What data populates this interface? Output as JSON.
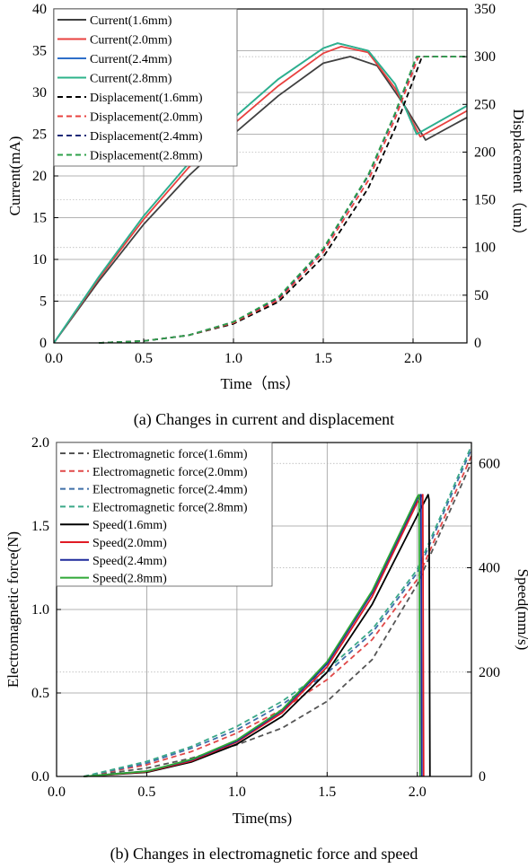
{
  "chart_data": [
    {
      "type": "line",
      "caption": "(a) Changes in current and displacement",
      "xlabel": "Time（ms）",
      "ylabel": "Current(mA)",
      "y2label": "Displacement（um）",
      "xlim": [
        0,
        2.3
      ],
      "ylim": [
        0,
        40
      ],
      "y2lim": [
        0,
        350
      ],
      "xticks": [
        "0.0",
        "0.5",
        "1.0",
        "1.5",
        "2.0"
      ],
      "yticks": [
        "0",
        "5",
        "10",
        "15",
        "20",
        "25",
        "30",
        "35",
        "40"
      ],
      "y2ticks": [
        "0",
        "50",
        "100",
        "150",
        "200",
        "250",
        "300",
        "350"
      ],
      "grid": true,
      "legend_position": "top-left",
      "colors": {
        "1.6mm": "#404040",
        "2.0mm": "#e8413f",
        "2.4mm": "#2e6fc9",
        "2.8mm": "#2db38a"
      },
      "dashed_colors": {
        "1.6mm": "#000000",
        "2.0mm": "#e8413f",
        "2.4mm": "#1e2a78",
        "2.8mm": "#2ea04a"
      },
      "series": [
        {
          "name": "Current(1.6mm)",
          "axis": "left",
          "style": "solid",
          "key": "1.6mm",
          "x": [
            0,
            0.25,
            0.5,
            0.75,
            1.0,
            1.25,
            1.5,
            1.65,
            1.8,
            1.95,
            2.07,
            2.3
          ],
          "y": [
            0,
            7.4,
            14.2,
            20.0,
            25.0,
            29.6,
            33.5,
            34.3,
            33.2,
            28.5,
            24.3,
            27.0
          ]
        },
        {
          "name": "Current(2.0mm)",
          "axis": "left",
          "style": "solid",
          "key": "2.0mm",
          "x": [
            0,
            0.25,
            0.5,
            0.75,
            1.0,
            1.25,
            1.5,
            1.6,
            1.75,
            1.9,
            2.04,
            2.3
          ],
          "y": [
            0,
            7.7,
            14.8,
            21.0,
            26.2,
            30.8,
            34.7,
            35.5,
            34.8,
            30.5,
            24.7,
            27.8
          ]
        },
        {
          "name": "Current(2.4mm)",
          "axis": "left",
          "style": "solid",
          "key": "2.4mm",
          "x": [
            0,
            0.25,
            0.5,
            0.75,
            1.0,
            1.25,
            1.5,
            1.58,
            1.75,
            1.9,
            2.02,
            2.3
          ],
          "y": [
            0,
            7.9,
            15.2,
            21.5,
            26.9,
            31.6,
            35.3,
            35.9,
            35.0,
            31.0,
            25.0,
            28.4
          ]
        },
        {
          "name": "Current(2.8mm)",
          "axis": "left",
          "style": "solid",
          "key": "2.8mm",
          "x": [
            0,
            0.25,
            0.5,
            0.75,
            1.0,
            1.25,
            1.5,
            1.58,
            1.75,
            1.9,
            2.02,
            2.3
          ],
          "y": [
            0,
            7.9,
            15.2,
            21.5,
            26.9,
            31.6,
            35.3,
            35.9,
            35.0,
            31.0,
            25.0,
            28.4
          ]
        },
        {
          "name": "Displacement(1.6mm)",
          "axis": "right",
          "style": "dashed",
          "key": "1.6mm",
          "x": [
            0.25,
            0.5,
            0.75,
            1.0,
            1.25,
            1.5,
            1.75,
            1.9,
            2.0,
            2.05
          ],
          "y": [
            0,
            2,
            8,
            20,
            43,
            90,
            162,
            225,
            275,
            300
          ]
        },
        {
          "name": "Displacement(2.0mm)",
          "axis": "right",
          "style": "dashed",
          "key": "2.0mm",
          "x": [
            0.25,
            0.5,
            0.75,
            1.0,
            1.25,
            1.5,
            1.75,
            1.9,
            2.0,
            2.03,
            2.3
          ],
          "y": [
            0,
            2,
            8,
            21,
            45,
            95,
            170,
            235,
            285,
            300,
            300
          ]
        },
        {
          "name": "Displacement(2.4mm)",
          "axis": "right",
          "style": "dashed",
          "key": "2.4mm",
          "x": [
            0.25,
            0.5,
            0.75,
            1.0,
            1.25,
            1.5,
            1.75,
            1.9,
            2.0,
            2.02,
            2.3
          ],
          "y": [
            0,
            2,
            8,
            22,
            47,
            98,
            175,
            240,
            290,
            300,
            300
          ]
        },
        {
          "name": "Displacement(2.8mm)",
          "axis": "right",
          "style": "dashed",
          "key": "2.8mm",
          "x": [
            0.25,
            0.5,
            0.75,
            1.0,
            1.25,
            1.5,
            1.75,
            1.9,
            2.0,
            2.02,
            2.3
          ],
          "y": [
            0,
            2,
            8,
            22,
            48,
            99,
            176,
            241,
            291,
            300,
            300
          ]
        }
      ]
    },
    {
      "type": "line",
      "caption": "(b) Changes in electromagnetic force and speed",
      "xlabel": "Time(ms)",
      "ylabel": "Electromagnetic force(N)",
      "y2label": "Speed(mm/s)",
      "xlim": [
        0,
        2.3
      ],
      "ylim": [
        0,
        2.0
      ],
      "y2lim": [
        0,
        640
      ],
      "xticks": [
        "0.0",
        "0.5",
        "1.0",
        "1.5",
        "2.0"
      ],
      "yticks": [
        "0.0",
        "0.5",
        "1.0",
        "1.5",
        "2.0"
      ],
      "y2ticks": [
        "0",
        "200",
        "400",
        "600"
      ],
      "grid": true,
      "legend_position": "top-left",
      "colors": {
        "1.6mm": "#000000",
        "2.0mm": "#e01b24",
        "2.4mm": "#1e2a9c",
        "2.8mm": "#2fa836"
      },
      "dashed_colors": {
        "1.6mm": "#555555",
        "2.0mm": "#e04848",
        "2.4mm": "#3f6fa8",
        "2.8mm": "#3aa888"
      },
      "series": [
        {
          "name": "Electromagnetic force(1.6mm)",
          "axis": "left",
          "style": "dashed",
          "key": "1.6mm",
          "x": [
            0.15,
            0.5,
            0.75,
            1.0,
            1.25,
            1.5,
            1.75,
            2.0,
            2.3
          ],
          "y": [
            0,
            0.05,
            0.11,
            0.19,
            0.29,
            0.45,
            0.7,
            1.15,
            1.88
          ]
        },
        {
          "name": "Electromagnetic force(2.0mm)",
          "axis": "left",
          "style": "dashed",
          "key": "2.0mm",
          "x": [
            0.15,
            0.5,
            0.75,
            1.0,
            1.25,
            1.5,
            1.75,
            2.0,
            2.3
          ],
          "y": [
            0,
            0.07,
            0.15,
            0.26,
            0.4,
            0.58,
            0.82,
            1.18,
            1.92
          ]
        },
        {
          "name": "Electromagnetic force(2.4mm)",
          "axis": "left",
          "style": "dashed",
          "key": "2.4mm",
          "x": [
            0.15,
            0.5,
            0.75,
            1.0,
            1.25,
            1.5,
            1.75,
            2.0,
            2.3
          ],
          "y": [
            0,
            0.08,
            0.17,
            0.28,
            0.43,
            0.62,
            0.86,
            1.22,
            1.96
          ]
        },
        {
          "name": "Electromagnetic force(2.8mm)",
          "axis": "left",
          "style": "dashed",
          "key": "2.8mm",
          "x": [
            0.15,
            0.5,
            0.75,
            1.0,
            1.25,
            1.5,
            1.75,
            2.0,
            2.3
          ],
          "y": [
            0,
            0.09,
            0.18,
            0.3,
            0.45,
            0.64,
            0.88,
            1.24,
            1.98
          ]
        },
        {
          "name": "Speed(1.6mm)",
          "axis": "right",
          "style": "solid",
          "key": "1.6mm",
          "x": [
            0.15,
            0.5,
            0.75,
            1.0,
            1.25,
            1.5,
            1.75,
            2.0,
            2.06,
            2.065,
            2.07
          ],
          "y": [
            0,
            8,
            28,
            62,
            115,
            200,
            330,
            500,
            540,
            530,
            0
          ]
        },
        {
          "name": "Speed(2.0mm)",
          "axis": "right",
          "style": "solid",
          "key": "2.0mm",
          "x": [
            0.15,
            0.5,
            0.75,
            1.0,
            1.25,
            1.5,
            1.75,
            2.0,
            2.03,
            2.035
          ],
          "y": [
            0,
            9,
            30,
            66,
            122,
            210,
            345,
            525,
            540,
            0
          ]
        },
        {
          "name": "Speed(2.4mm)",
          "axis": "right",
          "style": "solid",
          "key": "2.4mm",
          "x": [
            0.15,
            0.5,
            0.75,
            1.0,
            1.25,
            1.5,
            1.75,
            2.0,
            2.02,
            2.025
          ],
          "y": [
            0,
            10,
            32,
            68,
            126,
            216,
            352,
            532,
            540,
            0
          ]
        },
        {
          "name": "Speed(2.8mm)",
          "axis": "right",
          "style": "solid",
          "key": "2.8mm",
          "x": [
            0.15,
            0.5,
            0.75,
            1.0,
            1.25,
            1.5,
            1.75,
            2.0,
            2.01,
            2.015
          ],
          "y": [
            0,
            10,
            33,
            70,
            128,
            220,
            356,
            536,
            540,
            0
          ]
        }
      ]
    }
  ]
}
